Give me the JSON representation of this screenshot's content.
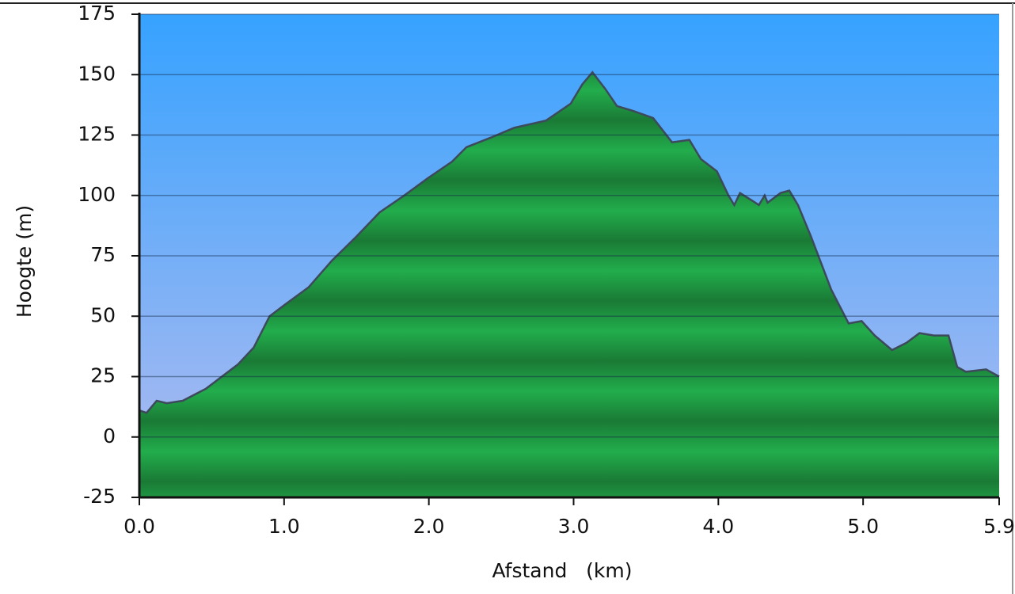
{
  "chart_data": {
    "type": "area",
    "x_label": "Afstand   (km)",
    "y_label": "Hoogte (m)",
    "x": [
      0,
      0.05,
      0.12,
      0.19,
      0.3,
      0.46,
      0.68,
      0.79,
      0.9,
      1.01,
      1.17,
      1.33,
      1.5,
      1.66,
      1.83,
      1.99,
      2.16,
      2.26,
      2.43,
      2.59,
      2.81,
      2.98,
      3.06,
      3.13,
      3.22,
      3.3,
      3.41,
      3.55,
      3.68,
      3.8,
      3.88,
      3.99,
      4.07,
      4.11,
      4.15,
      4.23,
      4.28,
      4.32,
      4.34,
      4.43,
      4.49,
      4.55,
      4.64,
      4.78,
      4.9,
      4.99,
      5.08,
      5.2,
      5.3,
      5.39,
      5.49,
      5.59,
      5.65,
      5.71,
      5.85,
      5.94
    ],
    "y": [
      11,
      10,
      15,
      14,
      15,
      20,
      30,
      37,
      50,
      55,
      62,
      73,
      83,
      93,
      100,
      107,
      114,
      120,
      124,
      128,
      131,
      138,
      146,
      151,
      144,
      137,
      135,
      132,
      122,
      123,
      115,
      110,
      100,
      96,
      101,
      98,
      96,
      100,
      97,
      101,
      102,
      96,
      83,
      61,
      47,
      48,
      42,
      36,
      39,
      43,
      42,
      42,
      29,
      27,
      28,
      25
    ],
    "color": "#1f9e45",
    "xlim": [
      0,
      5.94
    ],
    "ylim": [
      -25,
      175
    ],
    "xticks": [
      {
        "value": 0,
        "label": "0.0"
      },
      {
        "value": 1,
        "label": "1.0"
      },
      {
        "value": 2,
        "label": "2.0"
      },
      {
        "value": 3,
        "label": "3.0"
      },
      {
        "value": 4,
        "label": "4.0"
      },
      {
        "value": 5,
        "label": "5.0"
      },
      {
        "value": 5.94,
        "label": "5.9"
      }
    ],
    "yticks": [
      -25,
      0,
      25,
      50,
      75,
      100,
      125,
      150,
      175
    ],
    "grid": true
  }
}
